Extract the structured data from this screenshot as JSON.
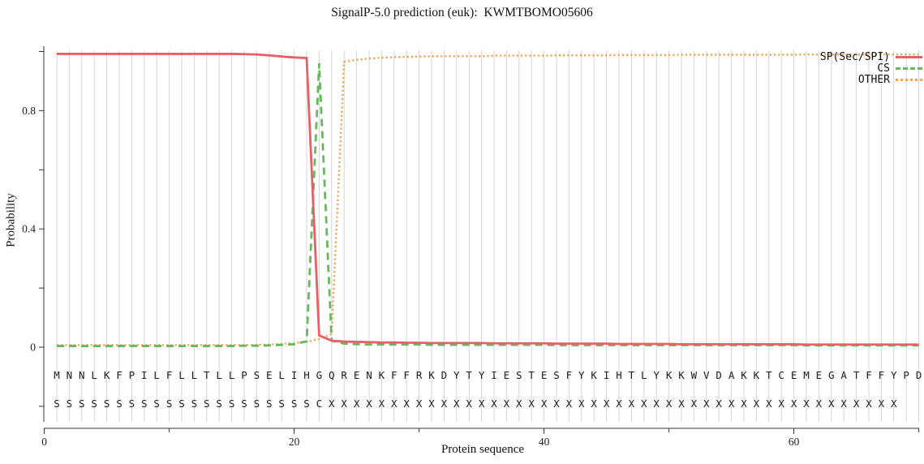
{
  "title": "SignalP-5.0 prediction (euk):  KWMTBOMO05606",
  "chart_data": {
    "type": "line",
    "title": "SignalP-5.0 prediction (euk):  KWMTBOMO05606",
    "xlabel": "Protein sequence",
    "ylabel": "Probability",
    "x_range": [
      0,
      70.5
    ],
    "y_range": [
      -0.28,
      1.05
    ],
    "grid": true,
    "legend_position": "top-right",
    "x_start": 1,
    "x_step": 1,
    "x_ticks": [
      {
        "v": 0,
        "label": "0"
      },
      {
        "v": 10,
        "label": ""
      },
      {
        "v": 20,
        "label": "20"
      },
      {
        "v": 30,
        "label": ""
      },
      {
        "v": 40,
        "label": "40"
      },
      {
        "v": 50,
        "label": ""
      },
      {
        "v": 60,
        "label": "60"
      },
      {
        "v": 70,
        "label": ""
      }
    ],
    "y_ticks": [
      {
        "v": 1.0,
        "label": ""
      },
      {
        "v": 0.8,
        "label": "0.8"
      },
      {
        "v": 0.6,
        "label": ""
      },
      {
        "v": 0.4,
        "label": "0.4"
      },
      {
        "v": 0.2,
        "label": ""
      },
      {
        "v": 0.0,
        "label": "0"
      },
      {
        "v": -0.2,
        "label": ""
      }
    ],
    "series": [
      {
        "name": "SP(Sec/SPI)",
        "color": "#e85f66",
        "style": "solid",
        "values": [
          0.992,
          0.992,
          0.992,
          0.992,
          0.992,
          0.992,
          0.992,
          0.992,
          0.992,
          0.992,
          0.992,
          0.992,
          0.992,
          0.992,
          0.992,
          0.991,
          0.99,
          0.987,
          0.983,
          0.98,
          0.978,
          0.04,
          0.022,
          0.019,
          0.018,
          0.017,
          0.016,
          0.016,
          0.015,
          0.015,
          0.014,
          0.014,
          0.014,
          0.014,
          0.014,
          0.013,
          0.013,
          0.013,
          0.013,
          0.013,
          0.012,
          0.012,
          0.012,
          0.012,
          0.012,
          0.011,
          0.011,
          0.011,
          0.011,
          0.011,
          0.01,
          0.01,
          0.01,
          0.01,
          0.01,
          0.01,
          0.01,
          0.01,
          0.01,
          0.01,
          0.009,
          0.009,
          0.009,
          0.009,
          0.009,
          0.009,
          0.009,
          0.009,
          0.009,
          0.009
        ]
      },
      {
        "name": "CS",
        "color": "#67b85f",
        "style": "dashed",
        "values": [
          0.004,
          0.004,
          0.004,
          0.004,
          0.004,
          0.004,
          0.004,
          0.004,
          0.004,
          0.004,
          0.004,
          0.004,
          0.004,
          0.004,
          0.004,
          0.005,
          0.005,
          0.006,
          0.008,
          0.01,
          0.02,
          0.96,
          0.022,
          0.012,
          0.01,
          0.009,
          0.009,
          0.009,
          0.009,
          0.009,
          0.008,
          0.008,
          0.008,
          0.008,
          0.008,
          0.008,
          0.008,
          0.008,
          0.008,
          0.008,
          0.007,
          0.007,
          0.007,
          0.007,
          0.007,
          0.007,
          0.007,
          0.007,
          0.007,
          0.007,
          0.007,
          0.007,
          0.007,
          0.007,
          0.007,
          0.007,
          0.007,
          0.007,
          0.007,
          0.007,
          0.006,
          0.006,
          0.006,
          0.006,
          0.006,
          0.006,
          0.006,
          0.006,
          0.006,
          0.006
        ]
      },
      {
        "name": "OTHER",
        "color": "#f0a45a",
        "style": "dotted",
        "values": [
          0.007,
          0.007,
          0.007,
          0.007,
          0.007,
          0.007,
          0.007,
          0.007,
          0.007,
          0.007,
          0.007,
          0.007,
          0.007,
          0.007,
          0.007,
          0.007,
          0.008,
          0.009,
          0.011,
          0.014,
          0.018,
          0.028,
          0.045,
          0.965,
          0.972,
          0.976,
          0.979,
          0.981,
          0.982,
          0.983,
          0.984,
          0.984,
          0.984,
          0.984,
          0.984,
          0.986,
          0.986,
          0.986,
          0.986,
          0.986,
          0.987,
          0.987,
          0.987,
          0.987,
          0.987,
          0.988,
          0.988,
          0.988,
          0.988,
          0.988,
          0.989,
          0.989,
          0.989,
          0.989,
          0.989,
          0.989,
          0.989,
          0.989,
          0.989,
          0.989,
          0.99,
          0.99,
          0.99,
          0.99,
          0.99,
          0.99,
          0.99,
          0.99,
          0.99,
          0.99
        ]
      }
    ],
    "sequence": "MNNLKFPILFLLTLLPSELIHGQRENKFFRKDYTYIESTESFYKIHTLYKKWVDAKKTCEMEGATFFYPD",
    "annotation": "SSSSSSSSSSSSSSSSSSSSSCXXXXXXXXXXXXXXXXXXXXXXXXXXXXXXXXXXXXXXXXXXXXXX"
  }
}
